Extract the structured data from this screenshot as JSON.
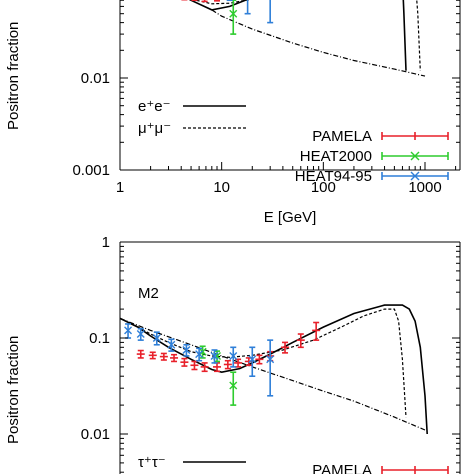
{
  "chart_data": [
    {
      "type": "line",
      "panel_label": "",
      "xlabel": "E [GeV]",
      "ylabel": "Positron fraction",
      "xscale": "log",
      "yscale": "log",
      "xlim": [
        1,
        2000
      ],
      "ylim": [
        0.001,
        0.16
      ],
      "xticks": [
        {
          "value": 1,
          "label": "1"
        },
        {
          "value": 10,
          "label": "10"
        },
        {
          "value": 100,
          "label": "100"
        },
        {
          "value": 1000,
          "label": "1000"
        }
      ],
      "yticks": [
        {
          "value": 0.001,
          "label": "0.001"
        },
        {
          "value": 0.01,
          "label": "0.01"
        }
      ],
      "grid": false,
      "legend_position": "bottom",
      "lines": [
        {
          "name": "e⁺e⁻",
          "style": "solid",
          "x": [
            1.3,
            2,
            3,
            5,
            8,
            12,
            20,
            30,
            40,
            60,
            100,
            200,
            400,
            550,
            600,
            620,
            650
          ],
          "y": [
            0.13,
            0.115,
            0.095,
            0.07,
            0.055,
            0.06,
            0.075,
            0.09,
            0.1,
            0.11,
            0.12,
            0.13,
            0.14,
            0.14,
            0.12,
            0.05,
            0.012
          ]
        },
        {
          "name": "μ⁺μ⁻",
          "style": "dashed",
          "x": [
            1.3,
            2,
            3,
            5,
            8,
            12,
            20,
            40,
            80,
            150,
            300,
            600,
            800,
            850,
            900
          ],
          "y": [
            0.13,
            0.115,
            0.09,
            0.072,
            0.064,
            0.065,
            0.072,
            0.085,
            0.1,
            0.115,
            0.13,
            0.14,
            0.12,
            0.05,
            0.012
          ]
        },
        {
          "name": "",
          "style": "dashdot",
          "x": [
            8,
            10,
            20,
            50,
            100,
            200,
            500,
            1000
          ],
          "y": [
            0.055,
            0.047,
            0.034,
            0.024,
            0.019,
            0.0155,
            0.0125,
            0.0105
          ]
        }
      ],
      "data_series": [
        {
          "name": "PAMELA",
          "color": "#e8202a",
          "marker": "plus",
          "points": [
            {
              "x": 1.6,
              "y": 0.085,
              "err": 0.006
            },
            {
              "x": 2.1,
              "y": 0.082,
              "err": 0.005
            },
            {
              "x": 2.7,
              "y": 0.08,
              "err": 0.005
            },
            {
              "x": 3.4,
              "y": 0.078,
              "err": 0.005
            },
            {
              "x": 4.3,
              "y": 0.076,
              "err": 0.005
            },
            {
              "x": 5.4,
              "y": 0.075,
              "err": 0.005
            },
            {
              "x": 6.8,
              "y": 0.074,
              "err": 0.006
            },
            {
              "x": 9.0,
              "y": 0.076,
              "err": 0.007
            }
          ]
        },
        {
          "name": "HEAT2000",
          "color": "#2ecc2e",
          "marker": "x",
          "points": [
            {
              "x": 6.5,
              "y": 0.085,
              "err": 0.01
            },
            {
              "x": 9.0,
              "y": 0.082,
              "err": 0.01
            },
            {
              "x": 13,
              "y": 0.05,
              "err": 0.02
            }
          ]
        },
        {
          "name": "HEAT94-95",
          "color": "#2f7fd8",
          "marker": "x",
          "points": [
            {
              "x": 5.5,
              "y": 0.095,
              "err": 0.008
            },
            {
              "x": 8.0,
              "y": 0.09,
              "err": 0.01
            },
            {
              "x": 12,
              "y": 0.085,
              "err": 0.015
            },
            {
              "x": 18,
              "y": 0.08,
              "err": 0.03
            },
            {
              "x": 30,
              "y": 0.09,
              "err": 0.05
            }
          ]
        }
      ],
      "legend": {
        "lines": [
          {
            "label": "e⁺e⁻",
            "style": "solid"
          },
          {
            "label": "μ⁺μ⁻",
            "style": "dashed"
          }
        ],
        "series": [
          "PAMELA",
          "HEAT2000",
          "HEAT94-95"
        ]
      }
    },
    {
      "type": "line",
      "panel_label": "M2",
      "xlabel": "",
      "ylabel": "Positron fraction",
      "xscale": "log",
      "yscale": "log",
      "xlim": [
        1,
        2000
      ],
      "ylim": [
        0.001,
        1
      ],
      "xticks": [],
      "yticks": [
        {
          "value": 1,
          "label": "1"
        },
        {
          "value": 0.1,
          "label": "0.1"
        },
        {
          "value": 0.01,
          "label": "0.01"
        }
      ],
      "grid": false,
      "legend_position": "bottom",
      "lines": [
        {
          "name": "τ⁺τ⁻",
          "style": "solid",
          "x": [
            1,
            1.5,
            2,
            3,
            5,
            8,
            10,
            15,
            20,
            30,
            50,
            100,
            200,
            400,
            600,
            700,
            800,
            900,
            1000,
            1050
          ],
          "y": [
            0.16,
            0.13,
            0.105,
            0.08,
            0.06,
            0.047,
            0.044,
            0.048,
            0.055,
            0.068,
            0.09,
            0.13,
            0.18,
            0.22,
            0.22,
            0.2,
            0.15,
            0.08,
            0.025,
            0.01
          ]
        },
        {
          "name": "",
          "style": "dashed",
          "x": [
            1,
            1.5,
            2,
            3,
            5,
            8,
            12,
            20,
            40,
            80,
            150,
            250,
            400,
            500,
            550,
            600,
            650
          ],
          "y": [
            0.16,
            0.13,
            0.11,
            0.09,
            0.072,
            0.065,
            0.063,
            0.066,
            0.075,
            0.095,
            0.13,
            0.17,
            0.2,
            0.2,
            0.15,
            0.06,
            0.015
          ]
        },
        {
          "name": "",
          "style": "dashdot",
          "x": [
            1,
            2,
            5,
            10,
            20,
            50,
            100,
            200,
            500,
            1000
          ],
          "y": [
            0.16,
            0.12,
            0.085,
            0.065,
            0.05,
            0.036,
            0.028,
            0.022,
            0.015,
            0.011
          ]
        }
      ],
      "data_series": [
        {
          "name": "PAMELA",
          "color": "#e8202a",
          "marker": "plus",
          "points": [
            {
              "x": 1.6,
              "y": 0.068,
              "err": 0.006
            },
            {
              "x": 2.1,
              "y": 0.066,
              "err": 0.005
            },
            {
              "x": 2.7,
              "y": 0.064,
              "err": 0.005
            },
            {
              "x": 3.4,
              "y": 0.062,
              "err": 0.005
            },
            {
              "x": 4.3,
              "y": 0.056,
              "err": 0.005
            },
            {
              "x": 5.4,
              "y": 0.052,
              "err": 0.005
            },
            {
              "x": 6.8,
              "y": 0.05,
              "err": 0.005
            },
            {
              "x": 9.0,
              "y": 0.05,
              "err": 0.005
            },
            {
              "x": 11.5,
              "y": 0.053,
              "err": 0.005
            },
            {
              "x": 14.5,
              "y": 0.055,
              "err": 0.005
            },
            {
              "x": 18.5,
              "y": 0.057,
              "err": 0.005
            },
            {
              "x": 23.5,
              "y": 0.06,
              "err": 0.006
            },
            {
              "x": 30,
              "y": 0.065,
              "err": 0.007
            },
            {
              "x": 42,
              "y": 0.08,
              "err": 0.01
            },
            {
              "x": 60,
              "y": 0.095,
              "err": 0.015
            },
            {
              "x": 85,
              "y": 0.12,
              "err": 0.025
            }
          ]
        },
        {
          "name": "HEAT2000",
          "color": "#2ecc2e",
          "marker": "x",
          "points": [
            {
              "x": 6.5,
              "y": 0.072,
              "err": 0.01
            },
            {
              "x": 9.0,
              "y": 0.065,
              "err": 0.008
            },
            {
              "x": 13,
              "y": 0.032,
              "err": 0.012
            }
          ]
        },
        {
          "name": "HEAT94-95",
          "color": "#2f7fd8",
          "marker": "x",
          "points": [
            {
              "x": 1.2,
              "y": 0.12,
              "err": 0.02
            },
            {
              "x": 1.6,
              "y": 0.11,
              "err": 0.015
            },
            {
              "x": 2.3,
              "y": 0.1,
              "err": 0.015
            },
            {
              "x": 3.2,
              "y": 0.085,
              "err": 0.012
            },
            {
              "x": 4.5,
              "y": 0.075,
              "err": 0.01
            },
            {
              "x": 6.0,
              "y": 0.068,
              "err": 0.01
            },
            {
              "x": 8.5,
              "y": 0.065,
              "err": 0.01
            },
            {
              "x": 13,
              "y": 0.065,
              "err": 0.015
            },
            {
              "x": 20,
              "y": 0.06,
              "err": 0.02
            },
            {
              "x": 30,
              "y": 0.06,
              "err": 0.035
            }
          ]
        }
      ],
      "legend": {
        "lines": [
          {
            "label": "τ⁺τ⁻",
            "style": "solid"
          }
        ],
        "series": [
          "PAMELA"
        ]
      }
    }
  ]
}
